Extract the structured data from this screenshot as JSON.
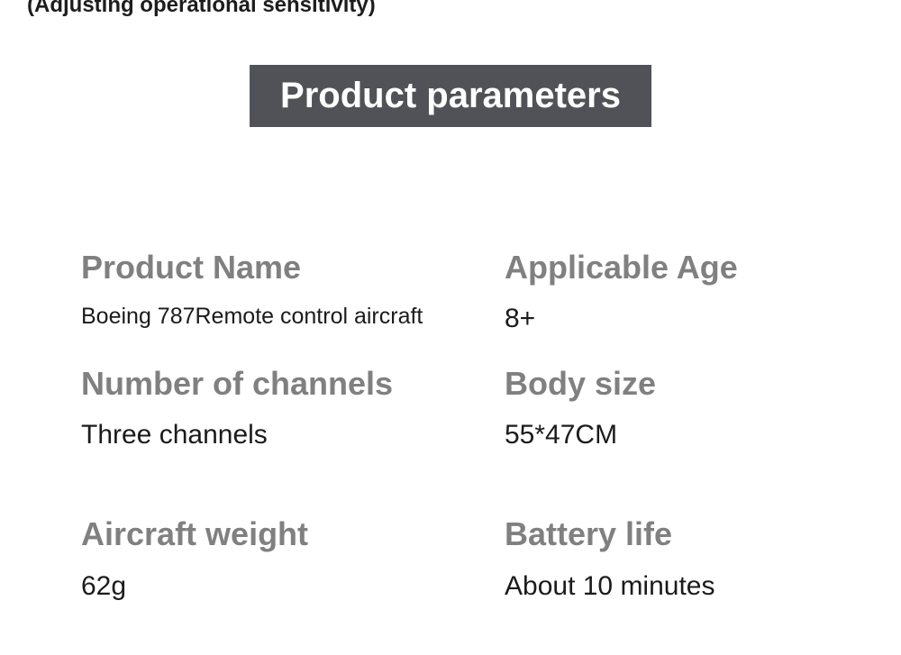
{
  "caption_partial": "(Adjusting operational sensitivity)",
  "title": "Product parameters",
  "params": {
    "product_name": {
      "label": "Product Name",
      "value": "Boeing 787Remote control aircraft"
    },
    "applicable_age": {
      "label": "Applicable Age",
      "value": "8+"
    },
    "channels": {
      "label": "Number of channels",
      "value": "Three channels"
    },
    "body_size": {
      "label": "Body size",
      "value": "55*47CM"
    },
    "weight": {
      "label": "Aircraft weight",
      "value": "62g"
    },
    "battery": {
      "label": "Battery life",
      "value": "About 10 minutes"
    }
  },
  "colors": {
    "title_bg": "#515257",
    "title_fg": "#ffffff",
    "label_color": "#808080",
    "value_color": "#1b1b1b",
    "background": "#ffffff"
  },
  "typography": {
    "title_fontsize": 40,
    "label_fontsize": 36,
    "value_fontsize": 30,
    "value_small_fontsize": 25,
    "font_family": "Segoe UI"
  }
}
